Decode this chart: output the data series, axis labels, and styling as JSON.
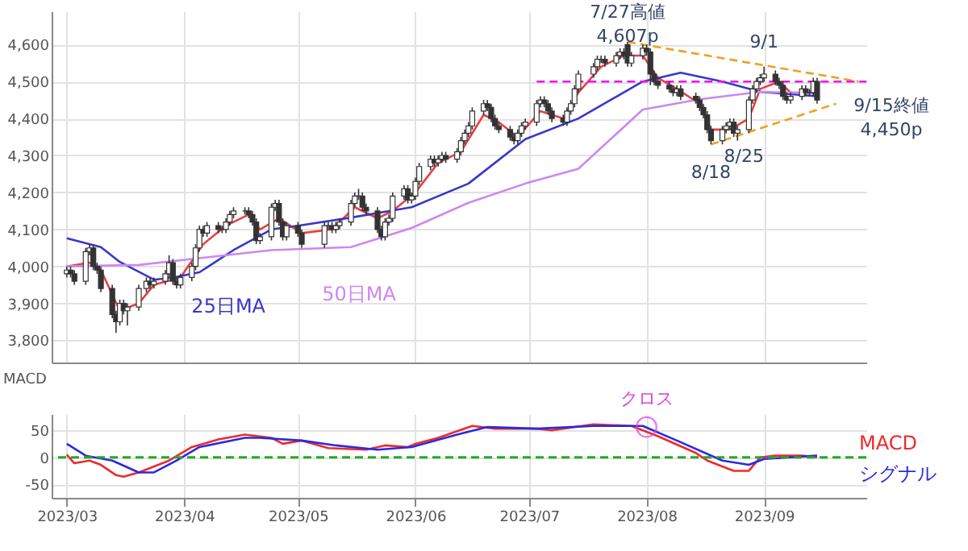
{
  "chart_data": [
    {
      "type": "candlestick",
      "color": "#333333",
      "x": [
        "2023-03-01",
        "2023-03-02",
        "2023-03-03",
        "2023-03-06",
        "2023-03-07",
        "2023-03-08",
        "2023-03-09",
        "2023-03-10",
        "2023-03-13",
        "2023-03-14",
        "2023-03-15",
        "2023-03-16",
        "2023-03-17",
        "2023-03-20",
        "2023-03-22",
        "2023-03-23",
        "2023-03-24",
        "2023-03-27",
        "2023-03-28",
        "2023-03-29",
        "2023-03-30",
        "2023-03-31",
        "2023-04-03",
        "2023-04-04",
        "2023-04-05",
        "2023-04-06",
        "2023-04-07",
        "2023-04-10",
        "2023-04-11",
        "2023-04-12",
        "2023-04-13",
        "2023-04-14",
        "2023-04-17",
        "2023-04-18",
        "2023-04-19",
        "2023-04-20",
        "2023-04-21",
        "2023-04-24",
        "2023-04-25",
        "2023-04-26",
        "2023-04-27",
        "2023-04-28",
        "2023-05-01",
        "2023-05-02",
        "2023-05-08",
        "2023-05-09",
        "2023-05-10",
        "2023-05-11",
        "2023-05-12",
        "2023-05-15",
        "2023-05-16",
        "2023-05-17",
        "2023-05-18",
        "2023-05-19",
        "2023-05-22",
        "2023-05-23",
        "2023-05-24",
        "2023-05-25",
        "2023-05-26",
        "2023-05-29",
        "2023-05-30",
        "2023-05-31",
        "2023-06-01",
        "2023-06-02",
        "2023-06-05",
        "2023-06-06",
        "2023-06-07",
        "2023-06-08",
        "2023-06-09",
        "2023-06-12",
        "2023-06-13",
        "2023-06-14",
        "2023-06-15",
        "2023-06-16",
        "2023-06-19",
        "2023-06-20",
        "2023-06-21",
        "2023-06-22",
        "2023-06-23",
        "2023-06-26",
        "2023-06-27",
        "2023-06-28",
        "2023-06-29",
        "2023-06-30",
        "2023-07-03",
        "2023-07-04",
        "2023-07-05",
        "2023-07-06",
        "2023-07-07",
        "2023-07-10",
        "2023-07-11",
        "2023-07-12",
        "2023-07-13",
        "2023-07-14",
        "2023-07-18",
        "2023-07-19",
        "2023-07-20",
        "2023-07-21",
        "2023-07-24",
        "2023-07-25",
        "2023-07-26",
        "2023-07-27",
        "2023-07-28",
        "2023-07-31",
        "2023-08-01",
        "2023-08-02",
        "2023-08-03",
        "2023-08-04",
        "2023-08-07",
        "2023-08-08",
        "2023-08-09",
        "2023-08-10",
        "2023-08-14",
        "2023-08-15",
        "2023-08-16",
        "2023-08-17",
        "2023-08-18",
        "2023-08-21",
        "2023-08-22",
        "2023-08-23",
        "2023-08-24",
        "2023-08-25",
        "2023-08-28",
        "2023-08-29",
        "2023-08-30",
        "2023-08-31",
        "2023-09-01",
        "2023-09-04",
        "2023-09-05",
        "2023-09-06",
        "2023-09-07",
        "2023-09-08",
        "2023-09-11",
        "2023-09-12",
        "2023-09-13",
        "2023-09-14",
        "2023-09-15"
      ],
      "ohlc": [
        [
          3980,
          4000,
          3970,
          3990
        ],
        [
          3990,
          4000,
          3970,
          3980
        ],
        [
          3980,
          3990,
          3950,
          3960
        ],
        [
          3960,
          4050,
          3950,
          4040
        ],
        [
          4040,
          4060,
          4030,
          4050
        ],
        [
          4050,
          4060,
          3990,
          4000
        ],
        [
          4000,
          4010,
          3980,
          3990
        ],
        [
          3990,
          4000,
          3930,
          3940
        ],
        [
          3940,
          3950,
          3860,
          3870
        ],
        [
          3870,
          3880,
          3820,
          3850
        ],
        [
          3850,
          3910,
          3840,
          3900
        ],
        [
          3900,
          3910,
          3870,
          3880
        ],
        [
          3880,
          3900,
          3840,
          3890
        ],
        [
          3890,
          3950,
          3880,
          3940
        ],
        [
          3940,
          3970,
          3930,
          3960
        ],
        [
          3960,
          3970,
          3940,
          3950
        ],
        [
          3950,
          3970,
          3940,
          3960
        ],
        [
          3960,
          3990,
          3950,
          3980
        ],
        [
          3980,
          4030,
          3970,
          4010
        ],
        [
          4010,
          4020,
          3950,
          3960
        ],
        [
          3960,
          3970,
          3940,
          3950
        ],
        [
          3950,
          3980,
          3940,
          3970
        ],
        [
          3970,
          4010,
          3960,
          4000
        ],
        [
          4000,
          4060,
          3990,
          4050
        ],
        [
          4050,
          4110,
          4040,
          4100
        ],
        [
          4100,
          4110,
          4080,
          4090
        ],
        [
          4090,
          4120,
          4080,
          4110
        ],
        [
          4110,
          4120,
          4090,
          4100
        ],
        [
          4100,
          4110,
          4090,
          4100
        ],
        [
          4100,
          4130,
          4090,
          4120
        ],
        [
          4120,
          4150,
          4110,
          4140
        ],
        [
          4140,
          4160,
          4130,
          4150
        ],
        [
          4150,
          4160,
          4140,
          4150
        ],
        [
          4150,
          4160,
          4130,
          4140
        ],
        [
          4140,
          4150,
          4110,
          4120
        ],
        [
          4120,
          4130,
          4060,
          4070
        ],
        [
          4070,
          4090,
          4060,
          4080
        ],
        [
          4080,
          4170,
          4070,
          4160
        ],
        [
          4160,
          4180,
          4150,
          4170
        ],
        [
          4170,
          4180,
          4110,
          4120
        ],
        [
          4120,
          4130,
          4070,
          4080
        ],
        [
          4080,
          4120,
          4070,
          4110
        ],
        [
          4110,
          4120,
          4080,
          4090
        ],
        [
          4090,
          4100,
          4050,
          4060
        ],
        [
          4060,
          4120,
          4050,
          4110
        ],
        [
          4110,
          4120,
          4100,
          4110
        ],
        [
          4110,
          4120,
          4090,
          4100
        ],
        [
          4100,
          4120,
          4090,
          4110
        ],
        [
          4110,
          4130,
          4100,
          4120
        ],
        [
          4120,
          4180,
          4110,
          4170
        ],
        [
          4170,
          4200,
          4160,
          4190
        ],
        [
          4190,
          4210,
          4180,
          4190
        ],
        [
          4190,
          4200,
          4150,
          4160
        ],
        [
          4160,
          4170,
          4140,
          4150
        ],
        [
          4150,
          4160,
          4090,
          4100
        ],
        [
          4100,
          4110,
          4070,
          4080
        ],
        [
          4080,
          4130,
          4070,
          4120
        ],
        [
          4120,
          4140,
          4110,
          4130
        ],
        [
          4130,
          4200,
          4120,
          4190
        ],
        [
          4190,
          4220,
          4180,
          4210
        ],
        [
          4210,
          4220,
          4170,
          4180
        ],
        [
          4180,
          4200,
          4170,
          4190
        ],
        [
          4190,
          4240,
          4180,
          4230
        ],
        [
          4230,
          4280,
          4220,
          4270
        ],
        [
          4270,
          4300,
          4260,
          4290
        ],
        [
          4290,
          4300,
          4270,
          4280
        ],
        [
          4280,
          4300,
          4270,
          4290
        ],
        [
          4290,
          4310,
          4280,
          4300
        ],
        [
          4300,
          4310,
          4280,
          4290
        ],
        [
          4290,
          4320,
          4280,
          4310
        ],
        [
          4310,
          4350,
          4300,
          4340
        ],
        [
          4340,
          4370,
          4330,
          4360
        ],
        [
          4360,
          4390,
          4350,
          4380
        ],
        [
          4380,
          4430,
          4370,
          4420
        ],
        [
          4420,
          4450,
          4410,
          4440
        ],
        [
          4440,
          4450,
          4420,
          4430
        ],
        [
          4430,
          4440,
          4390,
          4400
        ],
        [
          4400,
          4410,
          4370,
          4380
        ],
        [
          4380,
          4390,
          4360,
          4370
        ],
        [
          4370,
          4380,
          4340,
          4350
        ],
        [
          4350,
          4360,
          4330,
          4340
        ],
        [
          4340,
          4370,
          4330,
          4360
        ],
        [
          4360,
          4390,
          4350,
          4380
        ],
        [
          4380,
          4400,
          4370,
          4390
        ],
        [
          4390,
          4450,
          4380,
          4440
        ],
        [
          4440,
          4460,
          4430,
          4450
        ],
        [
          4450,
          4460,
          4430,
          4440
        ],
        [
          4440,
          4450,
          4410,
          4420
        ],
        [
          4420,
          4430,
          4390,
          4400
        ],
        [
          4400,
          4410,
          4380,
          4390
        ],
        [
          4390,
          4430,
          4380,
          4420
        ],
        [
          4420,
          4450,
          4410,
          4440
        ],
        [
          4440,
          4490,
          4430,
          4480
        ],
        [
          4480,
          4530,
          4470,
          4520
        ],
        [
          4520,
          4550,
          4510,
          4540
        ],
        [
          4540,
          4570,
          4530,
          4560
        ],
        [
          4560,
          4570,
          4550,
          4560
        ],
        [
          4560,
          4570,
          4540,
          4550
        ],
        [
          4550,
          4580,
          4540,
          4570
        ],
        [
          4570,
          4590,
          4560,
          4580
        ],
        [
          4580,
          4590,
          4560,
          4570
        ],
        [
          4600,
          4607,
          4540,
          4550
        ],
        [
          4550,
          4580,
          4540,
          4570
        ],
        [
          4570,
          4600,
          4560,
          4590
        ],
        [
          4590,
          4600,
          4570,
          4580
        ],
        [
          4580,
          4590,
          4490,
          4520
        ],
        [
          4520,
          4530,
          4490,
          4500
        ],
        [
          4500,
          4510,
          4480,
          4490
        ],
        [
          4490,
          4500,
          4470,
          4480
        ],
        [
          4480,
          4490,
          4460,
          4470
        ],
        [
          4470,
          4490,
          4460,
          4480
        ],
        [
          4480,
          4490,
          4450,
          4460
        ],
        [
          4460,
          4470,
          4440,
          4450
        ],
        [
          4450,
          4460,
          4420,
          4430
        ],
        [
          4430,
          4440,
          4400,
          4410
        ],
        [
          4410,
          4420,
          4360,
          4370
        ],
        [
          4370,
          4380,
          4330,
          4340
        ],
        [
          4340,
          4380,
          4330,
          4370
        ],
        [
          4370,
          4390,
          4360,
          4380
        ],
        [
          4380,
          4400,
          4370,
          4390
        ],
        [
          4390,
          4400,
          4350,
          4360
        ],
        [
          4360,
          4380,
          4340,
          4370
        ],
        [
          4370,
          4460,
          4360,
          4450
        ],
        [
          4450,
          4490,
          4440,
          4480
        ],
        [
          4480,
          4510,
          4470,
          4500
        ],
        [
          4500,
          4520,
          4490,
          4510
        ],
        [
          4510,
          4540,
          4500,
          4520
        ],
        [
          4520,
          4530,
          4490,
          4500
        ],
        [
          4500,
          4510,
          4480,
          4490
        ],
        [
          4490,
          4500,
          4450,
          4460
        ],
        [
          4460,
          4470,
          4440,
          4450
        ],
        [
          4450,
          4470,
          4440,
          4460
        ],
        [
          4460,
          4490,
          4450,
          4480
        ],
        [
          4480,
          4490,
          4460,
          4470
        ],
        [
          4470,
          4480,
          4460,
          4470
        ],
        [
          4470,
          4510,
          4460,
          4500
        ],
        [
          4500,
          4510,
          4440,
          4450
        ]
      ],
      "series": [
        {
          "type": "line",
          "color": "#e84040",
          "x": [
            "2023-03-01",
            "2023-03-07",
            "2023-03-10",
            "2023-03-15",
            "2023-03-20",
            "2023-03-24",
            "2023-03-31",
            "2023-04-06",
            "2023-04-12",
            "2023-04-18",
            "2023-04-21",
            "2023-04-26",
            "2023-05-02",
            "2023-05-10",
            "2023-05-16",
            "2023-05-22",
            "2023-05-26",
            "2023-06-01",
            "2023-06-07",
            "2023-06-13",
            "2023-06-19",
            "2023-06-23",
            "2023-06-28",
            "2023-07-04",
            "2023-07-10",
            "2023-07-14",
            "2023-07-20",
            "2023-07-26",
            "2023-07-31",
            "2023-08-04",
            "2023-08-09",
            "2023-08-15",
            "2023-08-18",
            "2023-08-23",
            "2023-08-28",
            "2023-08-31",
            "2023-09-05",
            "2023-09-08",
            "2023-09-13",
            "2023-09-15"
          ],
          "values": [
            4000,
            4010,
            3990,
            3880,
            3900,
            3950,
            3970,
            4060,
            4110,
            4140,
            4100,
            4130,
            4090,
            4100,
            4160,
            4130,
            4150,
            4200,
            4280,
            4310,
            4410,
            4390,
            4350,
            4420,
            4400,
            4470,
            4540,
            4570,
            4570,
            4510,
            4480,
            4440,
            4370,
            4370,
            4400,
            4480,
            4500,
            4470,
            4470,
            4470
          ]
        },
        {
          "type": "line",
          "name": "25日MA",
          "color": "#3838c8",
          "x": [
            "2023-03-01",
            "2023-03-10",
            "2023-03-15",
            "2023-03-24",
            "2023-03-29",
            "2023-04-05",
            "2023-04-14",
            "2023-04-24",
            "2023-05-01",
            "2023-05-15",
            "2023-05-31",
            "2023-06-15",
            "2023-06-30",
            "2023-07-14",
            "2023-07-31",
            "2023-08-10",
            "2023-08-21",
            "2023-08-31",
            "2023-09-15"
          ],
          "values": [
            4076,
            4052,
            4012,
            3964,
            3970,
            3984,
            4044,
            4100,
            4110,
            4132,
            4160,
            4224,
            4344,
            4400,
            4500,
            4524,
            4500,
            4472,
            4460
          ]
        },
        {
          "type": "line",
          "name": "50日MA",
          "color": "#cc88ee",
          "x": [
            "2023-03-01",
            "2023-03-20",
            "2023-04-03",
            "2023-04-24",
            "2023-05-15",
            "2023-05-31",
            "2023-06-15",
            "2023-06-30",
            "2023-07-14",
            "2023-07-31",
            "2023-08-15",
            "2023-08-31",
            "2023-09-15"
          ],
          "values": [
            4000,
            4004,
            4020,
            4044,
            4052,
            4104,
            4172,
            4224,
            4264,
            4424,
            4452,
            4472,
            4468
          ]
        },
        {
          "type": "line",
          "color": "#f0a020",
          "line_style": "dashed",
          "x": [
            "2023-07-27",
            "2023-09-26"
          ],
          "values": [
            4607,
            4500
          ]
        },
        {
          "type": "line",
          "color": "#f0a020",
          "line_style": "dashed",
          "x": [
            "2023-08-18",
            "2023-09-20"
          ],
          "values": [
            4330,
            4440
          ]
        },
        {
          "type": "line",
          "color": "#ee11ee",
          "line_style": "dashed",
          "x": [
            "2023-07-03",
            "2023-09-28"
          ],
          "values": [
            4500,
            4500
          ]
        }
      ],
      "xlim": [
        "2023-02-25",
        "2023-09-28"
      ],
      "xticks": [
        {
          "value": "2023-03-01",
          "label": null
        },
        {
          "value": "2023-04-01",
          "label": null
        },
        {
          "value": "2023-05-01",
          "label": null
        },
        {
          "value": "2023-06-01",
          "label": null
        },
        {
          "value": "2023-07-01",
          "label": null
        },
        {
          "value": "2023-08-01",
          "label": null
        },
        {
          "value": "2023-09-01",
          "label": null
        }
      ],
      "ylim": [
        3740,
        4690
      ],
      "yticks": [
        {
          "value": 3800,
          "label": "3,800"
        },
        {
          "value": 3900,
          "label": "3,900"
        },
        {
          "value": 4000,
          "label": "4,000"
        },
        {
          "value": 4100,
          "label": "4,100"
        },
        {
          "value": 4200,
          "label": "4,200"
        },
        {
          "value": 4300,
          "label": "4,300"
        },
        {
          "value": 4400,
          "label": "4,400"
        },
        {
          "value": 4500,
          "label": "4,500"
        },
        {
          "value": 4600,
          "label": "4,600"
        }
      ],
      "grid": true,
      "tick_labels": "y",
      "annotations": [
        {
          "text": "7/27高値\n4,607p",
          "x": "2023-07-27",
          "y": 4607
        },
        {
          "text": "9/1",
          "x": "2023-09-01",
          "y": 4540
        },
        {
          "text": "8/18",
          "x": "2023-08-18",
          "y": 4330
        },
        {
          "text": "8/25",
          "x": "2023-08-25",
          "y": 4340
        },
        {
          "text": "9/15終値\n4,450p",
          "x": "2023-09-15",
          "y": 4450
        }
      ]
    },
    {
      "type": "line",
      "title": "MACD",
      "series": [
        {
          "name": "MACD",
          "color": "#ee2a2a",
          "x": [
            "2023-03-01",
            "2023-03-03",
            "2023-03-07",
            "2023-03-10",
            "2023-03-14",
            "2023-03-16",
            "2023-03-20",
            "2023-03-28",
            "2023-04-03",
            "2023-04-10",
            "2023-04-17",
            "2023-04-24",
            "2023-04-27",
            "2023-05-02",
            "2023-05-09",
            "2023-05-19",
            "2023-05-24",
            "2023-05-30",
            "2023-06-01",
            "2023-06-07",
            "2023-06-16",
            "2023-06-22",
            "2023-07-03",
            "2023-07-07",
            "2023-07-18",
            "2023-07-28",
            "2023-08-04",
            "2023-08-14",
            "2023-08-17",
            "2023-08-24",
            "2023-08-28",
            "2023-08-31",
            "2023-09-04",
            "2023-09-11",
            "2023-09-15"
          ],
          "values": [
            5,
            -11,
            -6,
            -14,
            -33,
            -36,
            -28,
            -6,
            19,
            33,
            42,
            36,
            25,
            31,
            17,
            14,
            22,
            19,
            25,
            36,
            58,
            53,
            53,
            50,
            61,
            58,
            39,
            8,
            -6,
            -25,
            -25,
            0,
            3,
            3,
            0
          ]
        },
        {
          "name": "シグナル",
          "color": "#2a2ae0",
          "x": [
            "2023-03-01",
            "2023-03-06",
            "2023-03-13",
            "2023-03-20",
            "2023-03-24",
            "2023-03-30",
            "2023-04-05",
            "2023-04-17",
            "2023-04-21",
            "2023-05-02",
            "2023-05-11",
            "2023-05-22",
            "2023-05-31",
            "2023-06-12",
            "2023-06-20",
            "2023-07-03",
            "2023-07-18",
            "2023-07-31",
            "2023-08-09",
            "2023-08-21",
            "2023-08-28",
            "2023-09-01",
            "2023-09-15"
          ],
          "values": [
            25,
            3,
            -6,
            -28,
            -28,
            -6,
            19,
            36,
            36,
            31,
            22,
            14,
            19,
            42,
            56,
            53,
            58,
            58,
            31,
            -6,
            -14,
            -3,
            3
          ]
        }
      ],
      "xlim": [
        "2023-02-25",
        "2023-09-28"
      ],
      "xticks": [
        {
          "value": "2023-03-01",
          "label": "2023/03"
        },
        {
          "value": "2023-04-01",
          "label": "2023/04"
        },
        {
          "value": "2023-05-01",
          "label": "2023/05"
        },
        {
          "value": "2023-06-01",
          "label": "2023/06"
        },
        {
          "value": "2023-07-01",
          "label": "2023/07"
        },
        {
          "value": "2023-08-01",
          "label": "2023/08"
        },
        {
          "value": "2023-09-01",
          "label": "2023/09"
        }
      ],
      "ylim": [
        -75,
        80
      ],
      "yticks": [
        -50,
        0,
        50
      ],
      "grid": true,
      "ref_lines": [
        {
          "axis": "y",
          "value": 0,
          "color": "#22aa22",
          "line_style": "dashed"
        }
      ],
      "annotations": [
        {
          "text": "クロス",
          "x": "2023-08-01",
          "y": 56
        }
      ]
    }
  ]
}
